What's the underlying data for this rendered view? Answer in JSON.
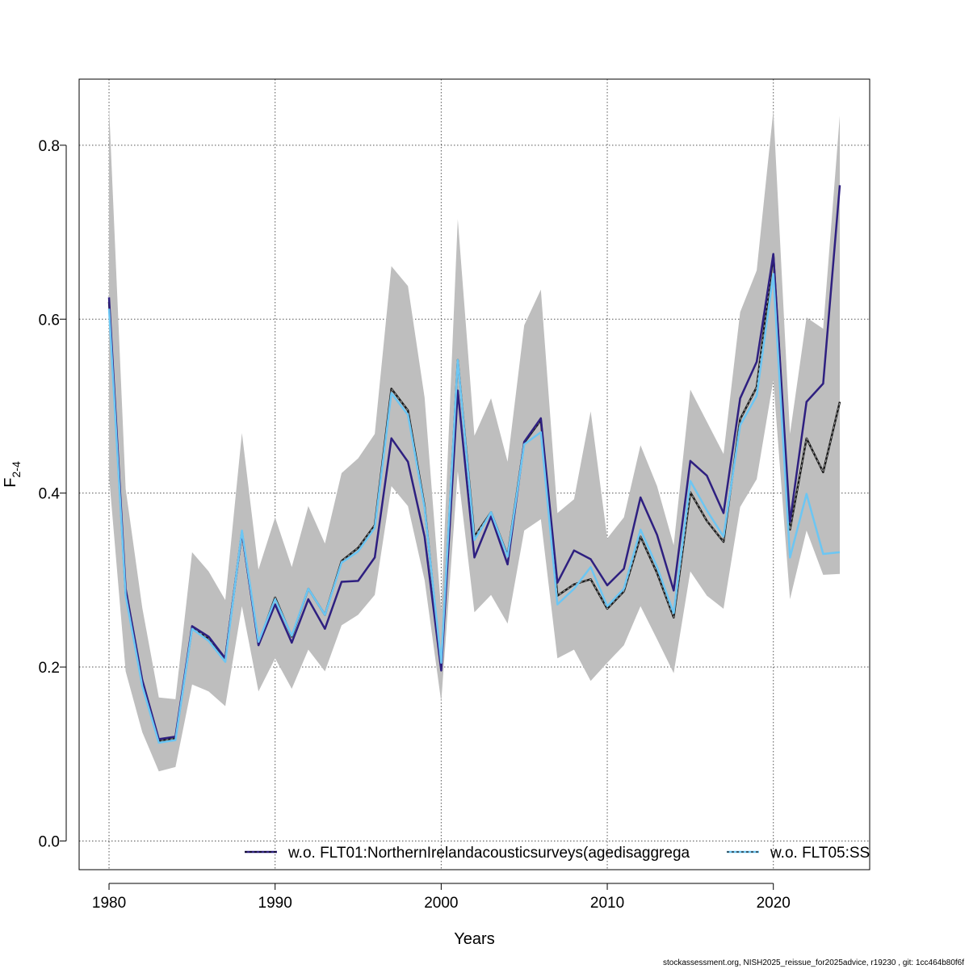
{
  "chart_data": {
    "type": "line",
    "xlabel": "Years",
    "ylabel": "F",
    "ylabel_sub": "2-4",
    "xlim": [
      1978.2,
      2025.8
    ],
    "ylim": [
      -0.033,
      0.876
    ],
    "x_ticks": [
      1980,
      1990,
      2000,
      2010,
      2020
    ],
    "y_ticks": [
      0.0,
      0.2,
      0.4,
      0.6,
      0.8
    ],
    "y_tick_labels": [
      "0.0",
      "0.2",
      "0.4",
      "0.6",
      "0.8"
    ],
    "grid": true,
    "legend_position": "bottom",
    "x": [
      1980,
      1981,
      1982,
      1983,
      1984,
      1985,
      1986,
      1987,
      1988,
      1989,
      1990,
      1991,
      1992,
      1993,
      1994,
      1995,
      1996,
      1997,
      1998,
      1999,
      2000,
      2001,
      2002,
      2003,
      2004,
      2005,
      2006,
      2007,
      2008,
      2009,
      2010,
      2011,
      2012,
      2013,
      2014,
      2015,
      2016,
      2017,
      2018,
      2019,
      2020,
      2021,
      2022,
      2023,
      2024
    ],
    "confidence_band": {
      "color": "#bebebe",
      "lower": [
        0.42,
        0.195,
        0.125,
        0.08,
        0.085,
        0.18,
        0.172,
        0.155,
        0.27,
        0.172,
        0.21,
        0.175,
        0.22,
        0.195,
        0.248,
        0.26,
        0.283,
        0.408,
        0.385,
        0.3,
        0.16,
        0.425,
        0.263,
        0.283,
        0.25,
        0.357,
        0.37,
        0.21,
        0.22,
        0.184,
        0.205,
        0.225,
        0.27,
        0.232,
        0.193,
        0.31,
        0.282,
        0.267,
        0.384,
        0.416,
        0.53,
        0.278,
        0.357,
        0.306,
        0.307
      ],
      "upper": [
        0.845,
        0.405,
        0.268,
        0.165,
        0.163,
        0.332,
        0.31,
        0.277,
        0.469,
        0.312,
        0.372,
        0.315,
        0.385,
        0.342,
        0.423,
        0.44,
        0.468,
        0.661,
        0.638,
        0.51,
        0.265,
        0.715,
        0.466,
        0.509,
        0.436,
        0.593,
        0.634,
        0.377,
        0.393,
        0.494,
        0.348,
        0.372,
        0.455,
        0.408,
        0.34,
        0.519,
        0.482,
        0.445,
        0.608,
        0.656,
        0.84,
        0.468,
        0.602,
        0.589,
        0.834
      ]
    },
    "series": [
      {
        "name": "",
        "color": "#1a1a1a",
        "style": "solid",
        "values": [
          0.62,
          0.285,
          0.18,
          0.115,
          0.118,
          0.245,
          0.233,
          0.21,
          0.355,
          0.227,
          0.28,
          0.235,
          0.29,
          0.26,
          0.322,
          0.337,
          0.363,
          0.52,
          0.495,
          0.385,
          0.2,
          0.553,
          0.35,
          0.378,
          0.328,
          0.458,
          0.484,
          0.282,
          0.295,
          0.301,
          0.267,
          0.287,
          0.35,
          0.308,
          0.257,
          0.401,
          0.368,
          0.344,
          0.485,
          0.522,
          0.674,
          0.358,
          0.463,
          0.424,
          0.505
        ]
      },
      {
        "name": "w.o. FLT01:NorthernIrelandacousticsurveys(agedisaggrega",
        "color": "#2e1f80",
        "style": "solid",
        "values": [
          0.625,
          0.29,
          0.185,
          0.117,
          0.12,
          0.247,
          0.235,
          0.21,
          0.355,
          0.225,
          0.272,
          0.228,
          0.278,
          0.244,
          0.298,
          0.299,
          0.326,
          0.463,
          0.436,
          0.35,
          0.196,
          0.518,
          0.326,
          0.373,
          0.318,
          0.459,
          0.486,
          0.297,
          0.334,
          0.324,
          0.294,
          0.313,
          0.395,
          0.352,
          0.288,
          0.437,
          0.42,
          0.377,
          0.509,
          0.551,
          0.675,
          0.367,
          0.505,
          0.526,
          0.754
        ]
      },
      {
        "name": "w.o. FLT05:SS",
        "color": "#6cc6f3",
        "style": "solid",
        "values": [
          0.612,
          0.282,
          0.178,
          0.113,
          0.116,
          0.244,
          0.23,
          0.206,
          0.357,
          0.229,
          0.278,
          0.236,
          0.29,
          0.26,
          0.32,
          0.333,
          0.36,
          0.515,
          0.49,
          0.383,
          0.205,
          0.553,
          0.346,
          0.378,
          0.327,
          0.456,
          0.47,
          0.272,
          0.29,
          0.315,
          0.27,
          0.29,
          0.358,
          0.315,
          0.262,
          0.414,
          0.38,
          0.35,
          0.478,
          0.512,
          0.652,
          0.326,
          0.399,
          0.33,
          0.332
        ]
      }
    ],
    "footer_text": "stockassessment.org, NISH2025_reissue_for2025advice, r19230 , git: 1cc464b80f6f"
  }
}
